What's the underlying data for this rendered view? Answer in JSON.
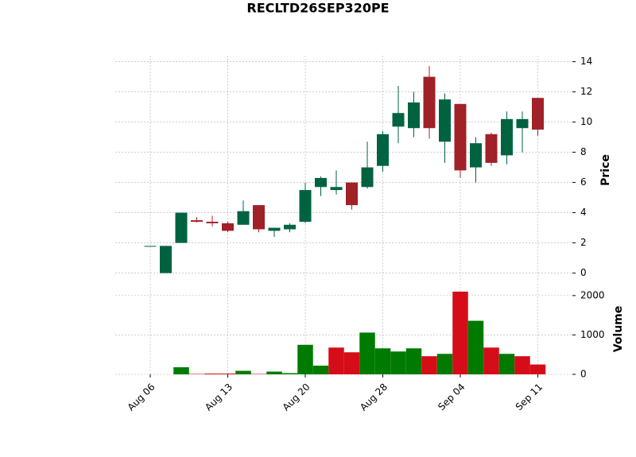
{
  "chart_data": {
    "type": "candlestick",
    "title": "RECLTD26SEP320PE",
    "categories": [
      "Aug 06",
      null,
      null,
      null,
      null,
      "Aug 13",
      null,
      null,
      null,
      null,
      "Aug 20",
      null,
      null,
      null,
      null,
      "Aug 28",
      null,
      null,
      null,
      null,
      "Sep 04",
      null,
      null,
      null,
      null,
      "Sep 11"
    ],
    "open": [
      1.8,
      0,
      2,
      3.5,
      3.4,
      3.3,
      3.2,
      4.5,
      2.8,
      2.9,
      3.4,
      5.7,
      5.5,
      6.0,
      5.7,
      7.1,
      9.7,
      9.6,
      13.0,
      8.7,
      11.2,
      7.0,
      9.2,
      7.8,
      9.6,
      11.6
    ],
    "high": [
      1.8,
      1.8,
      4,
      3.7,
      3.8,
      3.4,
      4.8,
      4.5,
      3.0,
      3.3,
      6.0,
      6.4,
      6.8,
      6.0,
      8.7,
      9.4,
      12.4,
      12.0,
      13.7,
      11.9,
      11.2,
      9.0,
      9.3,
      10.7,
      10.7,
      11.6
    ],
    "low": [
      1.8,
      0,
      2,
      3.35,
      3.1,
      2.7,
      3.2,
      2.7,
      2.4,
      2.7,
      3.3,
      5.1,
      5.2,
      4.2,
      5.6,
      6.7,
      8.6,
      9.0,
      8.9,
      7.3,
      6.3,
      6.0,
      7.1,
      7.2,
      8.0,
      9.1
    ],
    "close": [
      1.8,
      1.8,
      4,
      3.4,
      3.3,
      2.8,
      4.1,
      2.9,
      3.0,
      3.2,
      5.5,
      6.3,
      5.7,
      4.5,
      7.0,
      9.2,
      10.6,
      11.3,
      9.6,
      11.5,
      6.8,
      8.6,
      7.3,
      10.2,
      10.2,
      9.5
    ],
    "volume": [
      0,
      0,
      180,
      10,
      20,
      20,
      90,
      10,
      70,
      30,
      750,
      220,
      680,
      560,
      1060,
      660,
      580,
      660,
      460,
      520,
      2100,
      1360,
      680,
      520,
      460,
      250
    ],
    "up_color": "#006340",
    "down_color": "#a02128",
    "volume_colors": [
      "#007a00",
      "#007a00",
      "#007a00",
      "#d50d18",
      "#d50d18",
      "#d50d18",
      "#007a00",
      "#d50d18",
      "#007a00",
      "#007a00",
      "#007a00",
      "#007a00",
      "#d50d18",
      "#d50d18",
      "#007a00",
      "#007a00",
      "#007a00",
      "#007a00",
      "#d50d18",
      "#007a00",
      "#d50d18",
      "#007a00",
      "#d50d18",
      "#007a00",
      "#d50d18",
      "#d50d18"
    ],
    "ylabel": "Price",
    "ylim": [
      -0.6,
      14.4
    ],
    "yticks": [
      0,
      2,
      4,
      6,
      8,
      10,
      12,
      14
    ],
    "y2label": "Volume",
    "y2lim": [
      0,
      2300
    ],
    "y2ticks": [
      0,
      1000,
      2000
    ],
    "grid": true
  }
}
